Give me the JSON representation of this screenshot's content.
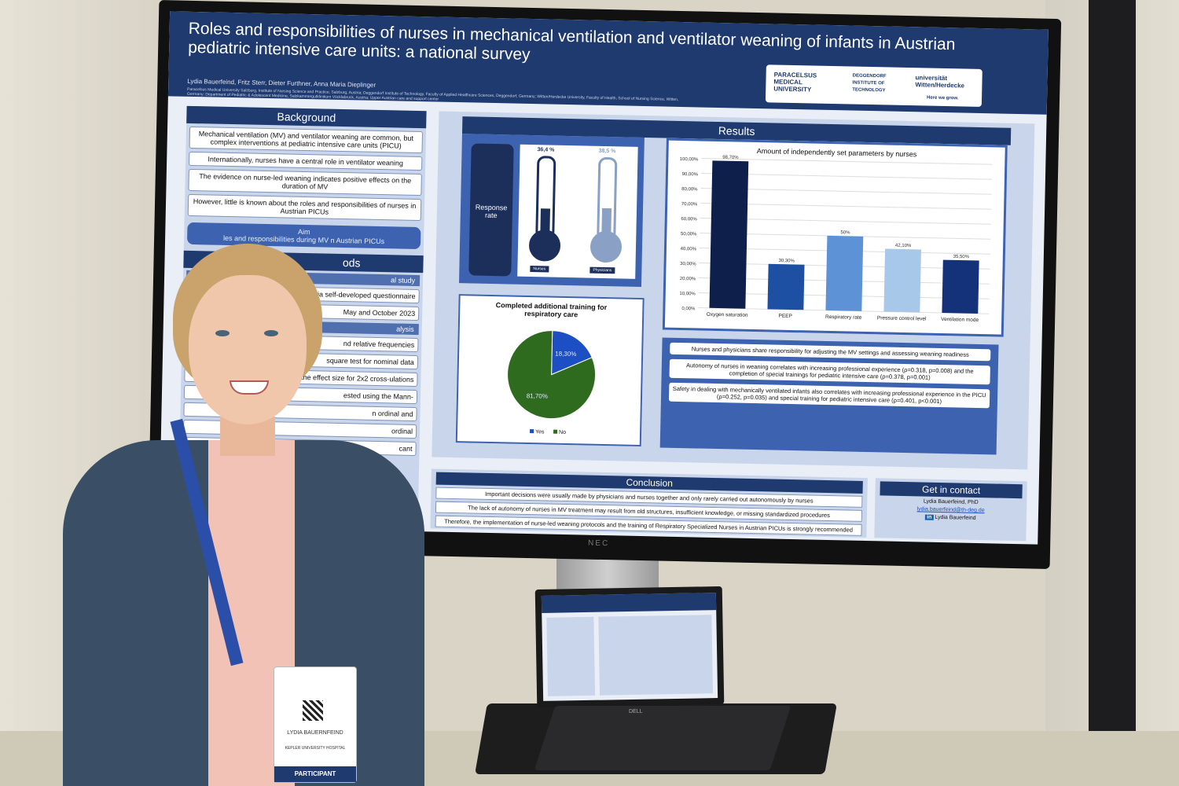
{
  "poster": {
    "title": "Roles and responsibilities of nurses in mechanical ventilation and ventilator weaning of infants in Austrian pediatric intensive care units: a national survey",
    "authors": "Lydia Bauerfeind, Fritz Sterr, Dieter Furthner, Anna Maria Dieplinger",
    "affiliations": "Paracelsus Medical University Salzburg, Institute of Nursing Science and Practice, Salzburg, Austria; Deggendorf Institute of Technology, Faculty of Applied Healthcare Sciences, Deggendorf, Germany; Witten/Herdecke University, Faculty of Health, School of Nursing Science, Witten, Germany; Department of Pediatric & Adolescent Medicine, Salzkammergutklinikum Vöcklabruck, Austria; Upper Austrian care and support center",
    "logos": {
      "paracelsus": "PARACELSUS MEDICAL UNIVERSITY",
      "dit": "DEGGENDORF INSTITUTE OF TECHNOLOGY",
      "uw": "universität Witten/Herdecke",
      "uw_tag": "Here we grow."
    },
    "background": {
      "heading": "Background",
      "items": [
        "Mechanical ventilation (MV) and ventilator weaning are common, but complex interventions at pediatric intensive care units (PICU)",
        "Internationally, nurses have a central role in ventilator weaning",
        "The evidence on nurse-led weaning indicates positive effects on the duration of MV",
        "However, little is known about the roles and responsibilities of nurses in Austrian PICUs"
      ],
      "aim_label": "Aim",
      "aim_text": "les and responsibilities during MV n Austrian PICUs"
    },
    "methods": {
      "heading": "ods",
      "sub1": "al study",
      "items1": [
        "s from n=10 PICUs in Austria self-developed questionnaire",
        "May and October 2023"
      ],
      "sub2": "alysis",
      "items2": [
        "nd relative frequencies",
        "square test for nominal data",
        "mine the effect size for 2x2 cross-ulations",
        "ested using the Mann-",
        "n ordinal and",
        "ordinal",
        "cant"
      ]
    },
    "results": {
      "heading": "Results",
      "response_label": "Response rate",
      "nurses_value": "36,4 %",
      "physicians_value": "38,5 %",
      "nurses_label": "Nurses",
      "physicians_label": "Physicians",
      "findings": [
        "Nurses and physicians share responsibility for adjusting the MV settings and assessing weaning readiness",
        "Autonomy of nurses in weaning correlates with increasing professional experience (ρ=0.318, p=0.008) and the completion of special trainings for pediatric intensive care (ρ=0.378, p=0.001)",
        "Safety in dealing with mechanically ventilated infants also correlates with increasing professional experience in the PICU (ρ=0.252, p=0.035) and special training for pediatric intensive care (ρ=0.401, p<0.001)"
      ]
    },
    "conclusion": {
      "heading": "Conclusion",
      "items": [
        "Important decisions were usually made by physicians and nurses together and only rarely carried out autonomously by nurses",
        "The lack of autonomy of nurses in MV treatment may result from old structures, insufficient knowledge, or missing standardized procedures",
        "Therefore, the implementation of nurse-led weaning protocols and the training of Respiratory Specialized Nurses in Austrian PICUs is strongly recommended"
      ]
    },
    "contact": {
      "heading": "Get in contact",
      "name": "Lydia Bauerfeind, PhD",
      "email": "lydia.bauerfeind@th-deg.de",
      "social": "Lydia Bauerfeind"
    }
  },
  "monitor_brand": "NEC",
  "laptop_brand": "DELL",
  "badge": {
    "name": "LYDIA BAUERNFEIND",
    "org": "KEPLER UNIVERSITY HOSPITAL",
    "role": "PARTICIPANT"
  },
  "chart_data": [
    {
      "type": "bar",
      "title": "Amount of independently set parameters by nurses",
      "categories": [
        "Oxygen saturation",
        "PEEP",
        "Respiratory rate",
        "Pressure control level",
        "Ventilation mode"
      ],
      "values": [
        98.7,
        30.3,
        50,
        42.1,
        35.5
      ],
      "value_labels": [
        "98,70%",
        "30,30%",
        "50%",
        "42,10%",
        "35,50%"
      ],
      "colors": [
        "#0d1f4a",
        "#1d4fa3",
        "#5d93d6",
        "#a8c8ea",
        "#14327a"
      ],
      "ylim": [
        0,
        100
      ],
      "yticks": [
        "0,00%",
        "10,00%",
        "20,00%",
        "30,00%",
        "40,00%",
        "50,00%",
        "60,00%",
        "70,00%",
        "80,00%",
        "90,00%",
        "100,00%"
      ],
      "grid": true
    },
    {
      "type": "pie",
      "title": "Completed additional training for respiratory care",
      "categories": [
        "Yes",
        "No"
      ],
      "values": [
        18.3,
        81.7
      ],
      "value_labels": [
        "18,30%",
        "81,70%"
      ],
      "colors": [
        "#1d4fc4",
        "#2f6b1f"
      ],
      "legend": "bottom"
    }
  ]
}
